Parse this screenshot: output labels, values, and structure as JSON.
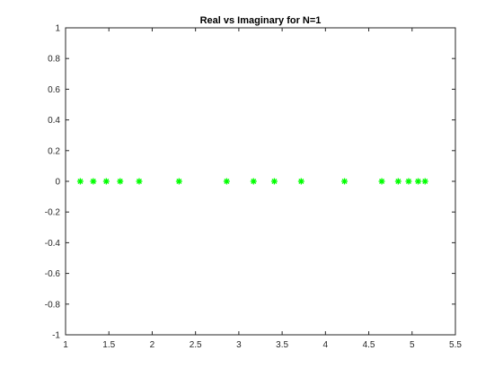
{
  "chart_data": {
    "type": "scatter",
    "title": "Real vs Imaginary for N=1",
    "xlabel": "",
    "ylabel": "",
    "xlim": [
      1,
      5.5
    ],
    "ylim": [
      -1,
      1
    ],
    "grid": false,
    "marker": "asterisk",
    "marker_color": "#00ff00",
    "x_ticks": [
      1,
      1.5,
      2,
      2.5,
      3,
      3.5,
      4,
      4.5,
      5,
      5.5
    ],
    "x_tick_labels": [
      "1",
      "1.5",
      "2",
      "2.5",
      "3",
      "3.5",
      "4",
      "4.5",
      "5",
      "5.5"
    ],
    "y_ticks": [
      -1,
      -0.8,
      -0.6,
      -0.4,
      -0.2,
      0,
      0.2,
      0.4,
      0.6,
      0.8,
      1
    ],
    "y_tick_labels": [
      "-1",
      "-0.8",
      "-0.6",
      "-0.4",
      "-0.2",
      "0",
      "0.2",
      "0.4",
      "0.6",
      "0.8",
      "1"
    ],
    "series": [
      {
        "x": [
          1.17,
          1.32,
          1.47,
          1.63,
          1.85,
          2.31,
          2.86,
          3.17,
          3.41,
          3.72,
          4.22,
          4.65,
          4.84,
          4.96,
          5.07,
          5.15
        ],
        "y": [
          0,
          0,
          0,
          0,
          0,
          0,
          0,
          0,
          0,
          0,
          0,
          0,
          0,
          0,
          0,
          0
        ]
      }
    ]
  }
}
